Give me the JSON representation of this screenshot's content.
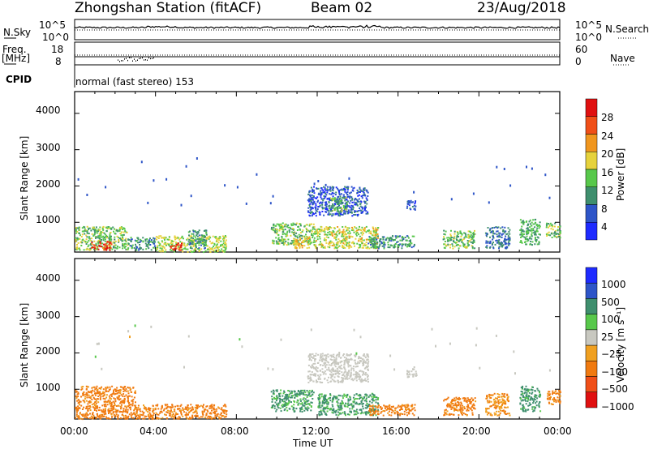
{
  "header": {
    "station": "Zhongshan Station (fitACF)",
    "beam": "Beam 02",
    "date": "23/Aug/2018"
  },
  "summary_panel": {
    "left_labels": {
      "nsky": "N.Sky",
      "freq": "Freq.",
      "freq_unit": "[MHz]",
      "cpid": "CPID"
    },
    "right_labels": {
      "nsearch": "N.Search",
      "nave": "Nave"
    },
    "nsky_ticks": [
      "10^5",
      "10^0"
    ],
    "nsearch_ticks": [
      "10^5",
      "10^0"
    ],
    "freq_ticks": [
      "18",
      "8"
    ],
    "nave_ticks": [
      "60",
      "0"
    ],
    "cpid_text": "normal (fast stereo) 153"
  },
  "chart_data": [
    {
      "type": "heatmap",
      "panel": "power",
      "ylabel": "Slant Range [km]",
      "yticks": [
        1000,
        2000,
        3000,
        4000
      ],
      "ylim": [
        180,
        4600
      ],
      "xlim_hours": [
        0,
        24
      ],
      "colorbar": {
        "label": "Power [dB]",
        "ticks": [
          "4",
          "8",
          "12",
          "16",
          "20",
          "24",
          "28"
        ],
        "range": [
          0,
          30
        ]
      },
      "echo_regions": [
        {
          "t": [
            0.0,
            2.6
          ],
          "r": [
            250,
            900
          ],
          "dB": 14
        },
        {
          "t": [
            0.8,
            1.8
          ],
          "r": [
            250,
            500
          ],
          "dB": 27
        },
        {
          "t": [
            2.6,
            4.0
          ],
          "r": [
            250,
            600
          ],
          "dB": 10
        },
        {
          "t": [
            4.0,
            7.5
          ],
          "r": [
            200,
            650
          ],
          "dB": 16
        },
        {
          "t": [
            4.7,
            5.3
          ],
          "r": [
            250,
            450
          ],
          "dB": 28
        },
        {
          "t": [
            5.6,
            6.5
          ],
          "r": [
            300,
            800
          ],
          "dB": 10
        },
        {
          "t": [
            9.7,
            11.8
          ],
          "r": [
            400,
            1000
          ],
          "dB": 14
        },
        {
          "t": [
            10.8,
            11.6
          ],
          "r": [
            300,
            600
          ],
          "dB": 20
        },
        {
          "t": [
            11.5,
            14.5
          ],
          "r": [
            1200,
            2000
          ],
          "dB": 6
        },
        {
          "t": [
            12.5,
            13.5
          ],
          "r": [
            1300,
            1700
          ],
          "dB": 13
        },
        {
          "t": [
            11.8,
            15.0
          ],
          "r": [
            300,
            900
          ],
          "dB": 17
        },
        {
          "t": [
            14.5,
            16.8
          ],
          "r": [
            300,
            650
          ],
          "dB": 11
        },
        {
          "t": [
            16.4,
            16.9
          ],
          "r": [
            1350,
            1650
          ],
          "dB": 6
        },
        {
          "t": [
            18.2,
            19.8
          ],
          "r": [
            300,
            800
          ],
          "dB": 14
        },
        {
          "t": [
            20.3,
            21.5
          ],
          "r": [
            300,
            900
          ],
          "dB": 8
        },
        {
          "t": [
            22.0,
            23.0
          ],
          "r": [
            400,
            1100
          ],
          "dB": 12
        },
        {
          "t": [
            23.3,
            24.0
          ],
          "r": [
            600,
            1000
          ],
          "dB": 14
        }
      ]
    },
    {
      "type": "heatmap",
      "panel": "velocity",
      "ylabel": "Slant Range [km]",
      "xlabel": "Time UT",
      "yticks": [
        1000,
        2000,
        3000,
        4000
      ],
      "ylim": [
        180,
        4600
      ],
      "xlim_hours": [
        0,
        24
      ],
      "xticks": [
        "00:00",
        "04:00",
        "08:00",
        "12:00",
        "16:00",
        "20:00",
        "00:00"
      ],
      "colorbar": {
        "label": "Velocity [m s⁻¹]",
        "ticks": [
          "1000",
          "500",
          "100",
          "25",
          "−25",
          "−100",
          "−500",
          "−1000"
        ]
      },
      "echo_regions": [
        {
          "t": [
            0.0,
            3.0
          ],
          "r": [
            200,
            1100
          ],
          "v": -150
        },
        {
          "t": [
            3.0,
            7.5
          ],
          "r": [
            200,
            600
          ],
          "v": -150
        },
        {
          "t": [
            9.7,
            11.8
          ],
          "r": [
            400,
            1000
          ],
          "v": 120
        },
        {
          "t": [
            11.5,
            14.5
          ],
          "r": [
            1200,
            2000
          ],
          "v": 0
        },
        {
          "t": [
            12.0,
            15.0
          ],
          "r": [
            300,
            900
          ],
          "v": 120
        },
        {
          "t": [
            14.5,
            16.8
          ],
          "r": [
            300,
            600
          ],
          "v": -150
        },
        {
          "t": [
            16.4,
            16.9
          ],
          "r": [
            1350,
            1650
          ],
          "v": 0
        },
        {
          "t": [
            18.2,
            19.8
          ],
          "r": [
            300,
            800
          ],
          "v": -150
        },
        {
          "t": [
            20.3,
            21.5
          ],
          "r": [
            300,
            900
          ],
          "v": -100
        },
        {
          "t": [
            22.0,
            23.0
          ],
          "r": [
            400,
            1100
          ],
          "v": 150
        },
        {
          "t": [
            23.3,
            24.0
          ],
          "r": [
            600,
            1000
          ],
          "v": -120
        }
      ]
    }
  ],
  "colors": {
    "power_scale": [
      "#1e2bff",
      "#2e55c8",
      "#3f8f6e",
      "#58c84b",
      "#e6d23c",
      "#f0961e",
      "#f04f18",
      "#e01010"
    ],
    "velocity_scale": [
      "#1e2bff",
      "#2e55c8",
      "#3f8f6e",
      "#58c84b",
      "#c8c8c0",
      "#f0a020",
      "#f07a10",
      "#f04f18",
      "#e01010"
    ]
  }
}
